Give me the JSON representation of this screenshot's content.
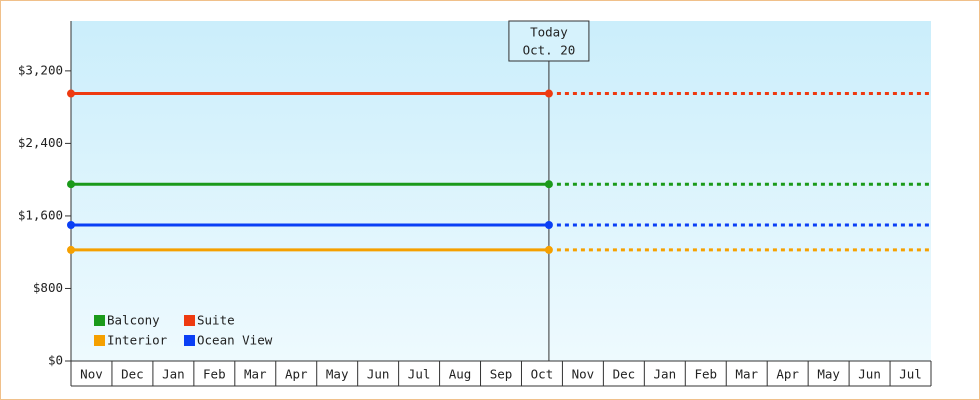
{
  "chart_data": {
    "type": "line",
    "categories": [
      "Nov",
      "Dec",
      "Jan",
      "Feb",
      "Mar",
      "Apr",
      "May",
      "Jun",
      "Jul",
      "Aug",
      "Sep",
      "Oct",
      "Nov",
      "Dec",
      "Jan",
      "Feb",
      "Mar",
      "Apr",
      "May",
      "Jun",
      "Jul"
    ],
    "series": [
      {
        "name": "Balcony",
        "color": "#1a9a1a",
        "value": 1950
      },
      {
        "name": "Suite",
        "color": "#ee3a10",
        "value": 2950
      },
      {
        "name": "Interior",
        "color": "#f5a000",
        "value": 1225
      },
      {
        "name": "Ocean View",
        "color": "#0a3ff5",
        "value": 1500
      }
    ],
    "today": {
      "title": "Today",
      "date": "Oct. 20"
    },
    "ylim": [
      0,
      3750
    ],
    "yticks": [
      {
        "value": 0,
        "label": "$0"
      },
      {
        "value": 800,
        "label": "$800"
      },
      {
        "value": 1600,
        "label": "$1,600"
      },
      {
        "value": 2400,
        "label": "$2,400"
      },
      {
        "value": 3200,
        "label": "$3,200"
      }
    ]
  }
}
